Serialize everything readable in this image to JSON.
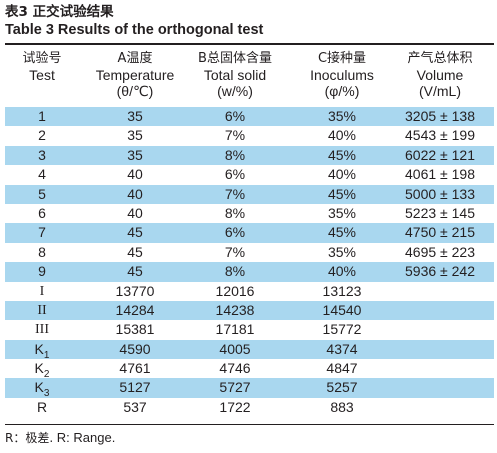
{
  "caption": {
    "cn_prefix": "表3",
    "cn_title": "正交试验结果",
    "en_prefix": "Table 3",
    "en_title": "Results of the orthogonal test"
  },
  "table": {
    "headers": [
      {
        "cn": "试验号",
        "en": "Test",
        "unit": ""
      },
      {
        "cn": "A温度",
        "en": "Temperature",
        "unit": "(θ/℃)"
      },
      {
        "cn": "B总固体含量",
        "en": "Total solid",
        "unit": "(w/%)"
      },
      {
        "cn": "C接种量",
        "en": "Inoculums",
        "unit": "(φ/%)"
      },
      {
        "cn": "产气总体积",
        "en": "Volume",
        "unit": "(V/mL)"
      }
    ],
    "rows": [
      [
        "1",
        "35",
        "6%",
        "35%",
        "3205 ± 138"
      ],
      [
        "2",
        "35",
        "7%",
        "40%",
        "4543 ± 199"
      ],
      [
        "3",
        "35",
        "8%",
        "45%",
        "6022 ± 121"
      ],
      [
        "4",
        "40",
        "6%",
        "40%",
        "4061 ± 198"
      ],
      [
        "5",
        "40",
        "7%",
        "45%",
        "5000 ± 133"
      ],
      [
        "6",
        "40",
        "8%",
        "35%",
        "5223 ± 145"
      ],
      [
        "7",
        "45",
        "6%",
        "45%",
        "4750 ± 215"
      ],
      [
        "8",
        "45",
        "7%",
        "35%",
        "4695 ± 223"
      ],
      [
        "9",
        "45",
        "8%",
        "40%",
        "5936 ± 242"
      ],
      [
        "I",
        "13770",
        "12016",
        "13123",
        ""
      ],
      [
        "II",
        "14284",
        "14238",
        "14540",
        ""
      ],
      [
        "III",
        "15381",
        "17181",
        "15772",
        ""
      ],
      [
        "K1",
        "4590",
        "4005",
        "4374",
        ""
      ],
      [
        "K2",
        "4761",
        "4746",
        "4847",
        ""
      ],
      [
        "K3",
        "5127",
        "5727",
        "5257",
        ""
      ],
      [
        "R",
        "537",
        "1722",
        "883",
        ""
      ]
    ]
  },
  "footnote": {
    "cn": "R：极差.",
    "en": "R: Range."
  }
}
